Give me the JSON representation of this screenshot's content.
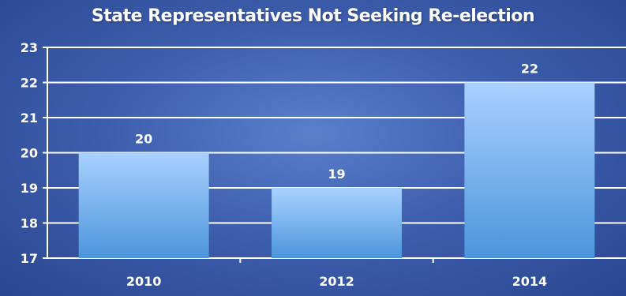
{
  "chart_data": {
    "type": "bar",
    "title": "State Representatives Not Seeking Re-election",
    "categories": [
      "2010",
      "2012",
      "2014"
    ],
    "values": [
      20,
      19,
      22
    ],
    "data_labels": [
      "20",
      "19",
      "22"
    ],
    "xlabel": "",
    "ylabel": "",
    "ylim": [
      17,
      23
    ],
    "yticks": [
      17,
      18,
      19,
      20,
      21,
      22,
      23
    ],
    "grid": true,
    "legend": "none",
    "colors": {
      "bar_top": "#a9d1ff",
      "bar_bottom": "#4c95dc",
      "grid": "#ffffff",
      "text": "#ffffff"
    }
  }
}
